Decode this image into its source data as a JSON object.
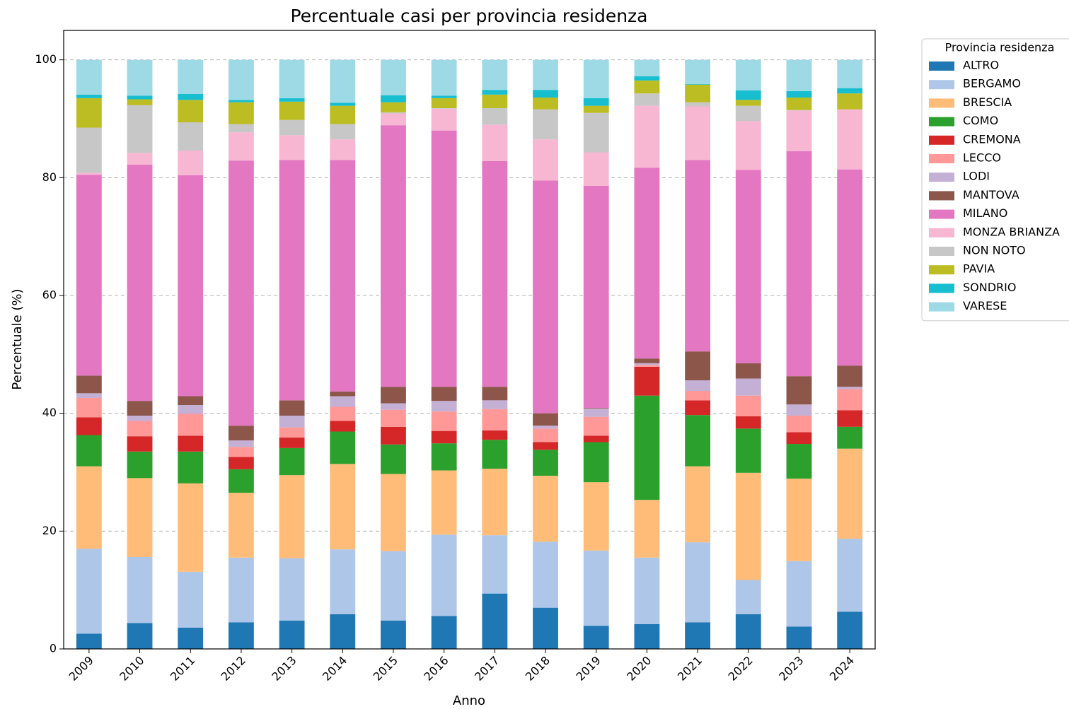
{
  "chart_data": {
    "type": "stacked-bar",
    "title": "Percentuale casi per provincia residenza",
    "x_label": "Anno",
    "y_label": "Percentuale (%)",
    "legend_title": "Provincia residenza",
    "legend_position": "outside-right",
    "categories": [
      "2009",
      "2010",
      "2011",
      "2012",
      "2013",
      "2014",
      "2015",
      "2016",
      "2017",
      "2018",
      "2019",
      "2020",
      "2021",
      "2022",
      "2023",
      "2024"
    ],
    "ylim": [
      0,
      105
    ],
    "yticks": [
      0,
      20,
      40,
      60,
      80,
      100
    ],
    "grid": true,
    "series": [
      {
        "name": "ALTRO",
        "color": "#1f77b4",
        "values": [
          2.6,
          4.4,
          3.6,
          4.5,
          4.8,
          5.9,
          4.8,
          5.6,
          9.4,
          7.0,
          3.9,
          4.2,
          4.5,
          5.9,
          3.8,
          6.3
        ]
      },
      {
        "name": "BERGAMO",
        "color": "#aec7e8",
        "values": [
          14.4,
          11.2,
          9.5,
          11.0,
          10.6,
          11.0,
          11.8,
          13.8,
          9.9,
          11.2,
          12.8,
          11.3,
          13.6,
          5.8,
          11.1,
          12.4
        ]
      },
      {
        "name": "BRESCIA",
        "color": "#ffbb78",
        "values": [
          14.0,
          13.4,
          15.0,
          11.0,
          14.1,
          14.5,
          13.1,
          10.9,
          11.3,
          11.2,
          11.6,
          9.8,
          12.9,
          18.2,
          14.0,
          15.3
        ]
      },
      {
        "name": "COMO",
        "color": "#2ca02c",
        "values": [
          5.3,
          4.5,
          5.4,
          4.0,
          4.6,
          5.5,
          5.0,
          4.6,
          4.9,
          4.4,
          6.8,
          17.7,
          8.7,
          7.5,
          5.9,
          3.7
        ]
      },
      {
        "name": "CREMONA",
        "color": "#d62728",
        "values": [
          3.0,
          2.6,
          2.7,
          2.1,
          1.8,
          1.8,
          3.0,
          2.1,
          1.6,
          1.3,
          1.1,
          4.9,
          2.5,
          2.1,
          2.0,
          2.8
        ]
      },
      {
        "name": "LECCO",
        "color": "#ff9896",
        "values": [
          3.3,
          2.6,
          3.7,
          1.7,
          1.7,
          2.4,
          2.9,
          3.3,
          3.6,
          2.3,
          3.2,
          0.3,
          1.6,
          3.5,
          2.8,
          3.6
        ]
      },
      {
        "name": "LODI",
        "color": "#c5b0d5",
        "values": [
          0.8,
          0.9,
          1.5,
          1.1,
          2.0,
          1.8,
          1.1,
          1.8,
          1.5,
          0.5,
          1.4,
          0.3,
          1.8,
          2.9,
          1.9,
          0.4
        ]
      },
      {
        "name": "MANTOVA",
        "color": "#8c564b",
        "values": [
          3.0,
          2.5,
          1.5,
          2.5,
          2.6,
          0.8,
          2.8,
          2.4,
          2.3,
          2.1,
          0.1,
          0.8,
          4.9,
          2.6,
          4.8,
          3.6
        ]
      },
      {
        "name": "MILANO",
        "color": "#e377c2",
        "values": [
          34.1,
          40.1,
          37.5,
          45.0,
          40.8,
          39.3,
          44.4,
          43.5,
          38.3,
          39.5,
          37.7,
          32.4,
          32.5,
          32.8,
          38.2,
          33.3
        ]
      },
      {
        "name": "MONZA BRIANZA",
        "color": "#f7b6d2",
        "values": [
          0.3,
          2.0,
          4.2,
          4.8,
          4.2,
          3.5,
          2.0,
          3.7,
          6.2,
          7.0,
          5.7,
          10.5,
          9.1,
          8.3,
          6.9,
          10.2
        ]
      },
      {
        "name": "NON NOTO",
        "color": "#c7c7c7",
        "values": [
          7.7,
          8.1,
          4.8,
          1.4,
          2.6,
          2.6,
          0.2,
          0.1,
          2.8,
          5.1,
          6.7,
          2.1,
          0.7,
          2.6,
          0.1,
          0.0
        ]
      },
      {
        "name": "PAVIA",
        "color": "#bcbd22",
        "values": [
          5.0,
          1.0,
          3.8,
          3.7,
          3.1,
          3.1,
          1.7,
          1.7,
          2.3,
          2.0,
          1.2,
          2.2,
          3.0,
          1.0,
          2.1,
          2.7
        ]
      },
      {
        "name": "SONDRIO",
        "color": "#17becf",
        "values": [
          0.6,
          0.6,
          1.0,
          0.4,
          0.6,
          0.5,
          1.2,
          0.4,
          0.8,
          1.3,
          1.3,
          0.7,
          0.1,
          1.6,
          1.1,
          0.9
        ]
      },
      {
        "name": "VARESE",
        "color": "#9edae5",
        "values": [
          5.9,
          6.1,
          5.8,
          6.8,
          6.5,
          7.3,
          6.0,
          6.1,
          5.1,
          5.1,
          6.5,
          2.8,
          4.1,
          5.2,
          5.3,
          4.8
        ]
      }
    ]
  }
}
